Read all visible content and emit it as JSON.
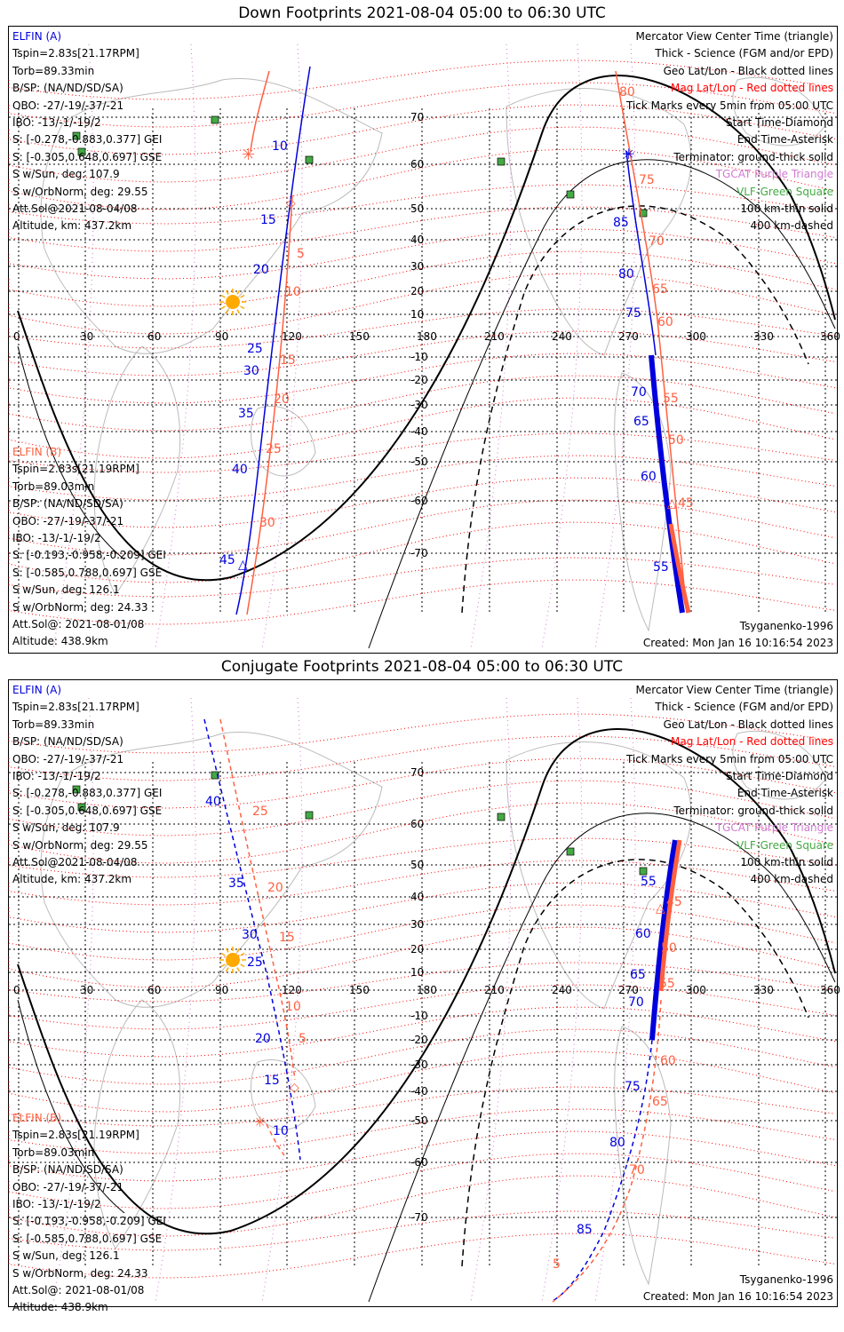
{
  "panels": [
    {
      "title": "Down Footprints 2021-08-04 05:00 to 06:30 UTC",
      "a_block": {
        "label": "ELFIN (A)",
        "lines": [
          "Tspin=2.83s[21.17RPM]",
          "Torb=89.33min",
          "B/SP: (NA/ND/SD/SA)",
          "OBO: -27/-19/-37/-21",
          "IBO: -13/-1/-19/2",
          "S: [-0.278,-0.883,0.377] GEI",
          "S: [-0.305,0.648,0.697] GSE",
          "S w/Sun, deg: 107.9",
          "S w/OrbNorm, deg: 29.55",
          "Att.Sol@2021-08-04/08",
          "Altitude, km: 437.2km"
        ]
      },
      "b_block": {
        "label": "ELFIN (B)",
        "lines": [
          "Tspin=2.83s[21.19RPM]",
          "Torb=89.03min",
          "B/SP: (NA/ND/SD/SA)",
          "OBO: -27/-19/-37/-21",
          "IBO: -13/-1/-19/2",
          "S: [-0.193,-0.958,-0.209] GEI",
          "S: [-0.585,0.788,0.697] GSE",
          "S w/Sun, deg: 126.1",
          "S w/OrbNorm, deg: 24.33",
          "Att.Sol@: 2021-08-01/08",
          "Altitude: 438.9km"
        ]
      },
      "legend": [
        {
          "text": "Mercator View Center Time (triangle)",
          "color": "#000000"
        },
        {
          "text": "Thick - Science (FGM and/or EPD)",
          "color": "#000000"
        },
        {
          "text": "Geo Lat/Lon - Black dotted lines",
          "color": "#000000"
        },
        {
          "text": "Mag Lat/Lon - Red dotted lines",
          "color": "#ff0000"
        },
        {
          "text": "Tick Marks every 5min from 05:00 UTC",
          "color": "#000000"
        },
        {
          "text": "Start Time-Diamond",
          "color": "#000000"
        },
        {
          "text": "End Time-Asterisk",
          "color": "#000000"
        },
        {
          "text": "Terminator: ground-thick solid",
          "color": "#000000"
        },
        {
          "text": "TGCAT Purple Triangle",
          "color": "#d07ad0"
        },
        {
          "text": "VLF-Green Square",
          "color": "#44aa44"
        },
        {
          "text": "100 km-thin solid",
          "color": "#000000"
        },
        {
          "text": "400 km-dashed",
          "color": "#000000"
        }
      ],
      "model": "Tsyganenko-1996",
      "created": "Created: Mon Jan 16 10:16:54 2023",
      "lon_labels": [
        "0",
        "30",
        "60",
        "90",
        "120",
        "150",
        "180",
        "210",
        "240",
        "270",
        "300",
        "330",
        "360"
      ],
      "lat_labels": [
        "70",
        "60",
        "50",
        "40",
        "30",
        "20",
        "10",
        "-10",
        "-20",
        "-30",
        "-40",
        "-50",
        "-60",
        "-70"
      ],
      "a_ticks": [
        "10",
        "15",
        "20",
        "25",
        "30",
        "35",
        "40",
        "45",
        "85",
        "80",
        "75",
        "70",
        "65",
        "60",
        "55"
      ],
      "b_ticks": [
        "80",
        "75",
        "70",
        "65",
        "60",
        "5",
        "10",
        "15",
        "20",
        "25",
        "30",
        "55",
        "50",
        "45"
      ]
    },
    {
      "title": "Conjugate Footprints 2021-08-04 05:00 to 06:30 UTC",
      "a_block": {
        "label": "ELFIN (A)",
        "lines": [
          "Tspin=2.83s[21.17RPM]",
          "Torb=89.33min",
          "B/SP: (NA/ND/SD/SA)",
          "OBO: -27/-19/-37/-21",
          "IBO: -13/-1/-19/2",
          "S: [-0.278,-0.883,0.377] GEI",
          "S: [-0.305,0.648,0.697] GSE",
          "S w/Sun, deg: 107.9",
          "S w/OrbNorm, deg: 29.55",
          "Att.Sol@2021-08-04/08",
          "Altitude, km: 437.2km"
        ]
      },
      "b_block": {
        "label": "ELFIN (B)",
        "lines": [
          "Tspin=2.83s[21.19RPM]",
          "Torb=89.03min",
          "B/SP: (NA/ND/SD/SA)",
          "OBO: -27/-19/-37/-21",
          "IBO: -13/-1/-19/2",
          "S: [-0.193,-0.958,-0.209] GEI",
          "S: [-0.585,0.788,0.697] GSE",
          "S w/Sun, deg: 126.1",
          "S w/OrbNorm, deg: 24.33",
          "Att.Sol@: 2021-08-01/08",
          "Altitude: 438.9km"
        ]
      },
      "legend": [
        {
          "text": "Mercator View Center Time (triangle)",
          "color": "#000000"
        },
        {
          "text": "Thick - Science (FGM and/or EPD)",
          "color": "#000000"
        },
        {
          "text": "Geo Lat/Lon - Black dotted lines",
          "color": "#000000"
        },
        {
          "text": "Mag Lat/Lon - Red dotted lines",
          "color": "#ff0000"
        },
        {
          "text": "Tick Marks every 5min from 05:00 UTC",
          "color": "#000000"
        },
        {
          "text": "Start Time-Diamond",
          "color": "#000000"
        },
        {
          "text": "End Time-Asterisk",
          "color": "#000000"
        },
        {
          "text": "Terminator: ground-thick solid",
          "color": "#000000"
        },
        {
          "text": "TGCAT Purple Triangle",
          "color": "#d07ad0"
        },
        {
          "text": "VLF-Green Square",
          "color": "#44aa44"
        },
        {
          "text": "100 km-thin solid",
          "color": "#000000"
        },
        {
          "text": "400 km-dashed",
          "color": "#000000"
        }
      ],
      "model": "Tsyganenko-1996",
      "created": "Created: Mon Jan 16 10:16:54 2023",
      "lon_labels": [
        "0",
        "30",
        "60",
        "90",
        "120",
        "150",
        "180",
        "210",
        "240",
        "270",
        "300",
        "330",
        "360"
      ],
      "lat_labels": [
        "70",
        "60",
        "50",
        "40",
        "30",
        "20",
        "10",
        "-10",
        "-20",
        "-30",
        "-40",
        "-50",
        "-60",
        "-70"
      ],
      "a_ticks": [
        "40",
        "35",
        "30",
        "25",
        "20",
        "15",
        "10",
        "55",
        "60",
        "65",
        "70",
        "75",
        "80",
        "85"
      ],
      "b_ticks": [
        "25",
        "20",
        "15",
        "10",
        "5",
        "45",
        "50",
        "55",
        "60",
        "65",
        "70",
        "5"
      ]
    }
  ],
  "colors": {
    "elfin_a": "#0000dd",
    "elfin_b": "#ff6040",
    "grid": "#000000",
    "mag_grid": "#ff0000",
    "tgcat": "#d07ad0",
    "vlf": "#44aa44",
    "sun": "#ffaa00"
  }
}
